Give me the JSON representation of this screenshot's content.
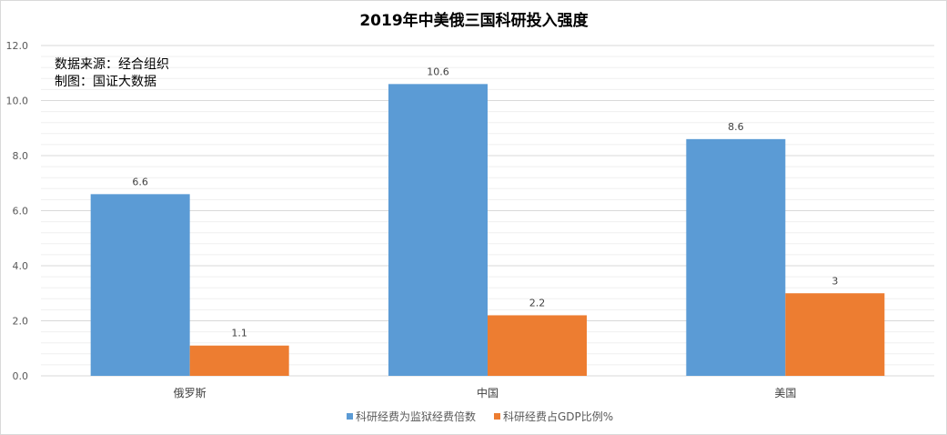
{
  "chart_data": {
    "type": "bar",
    "title": "2019年中美俄三国科研投入强度",
    "categories": [
      "俄罗斯",
      "中国",
      "美国"
    ],
    "series": [
      {
        "name": "科研经费为监狱经费倍数",
        "values": [
          6.6,
          10.6,
          8.6
        ],
        "labels": [
          "6.6",
          "10.6",
          "8.6"
        ],
        "color": "#5b9bd5"
      },
      {
        "name": "科研经费占GDP比例%",
        "values": [
          1.1,
          2.2,
          3
        ],
        "labels": [
          "1.1",
          "2.2",
          "3"
        ],
        "color": "#ed7d31"
      }
    ],
    "ylim": [
      0,
      12
    ],
    "yticks": [
      "0.0",
      "2.0",
      "4.0",
      "6.0",
      "8.0",
      "10.0",
      "12.0"
    ],
    "grid": true,
    "legend": "bottom",
    "annotations": [
      "数据来源：经合组织",
      "制图：国证大数据"
    ]
  }
}
